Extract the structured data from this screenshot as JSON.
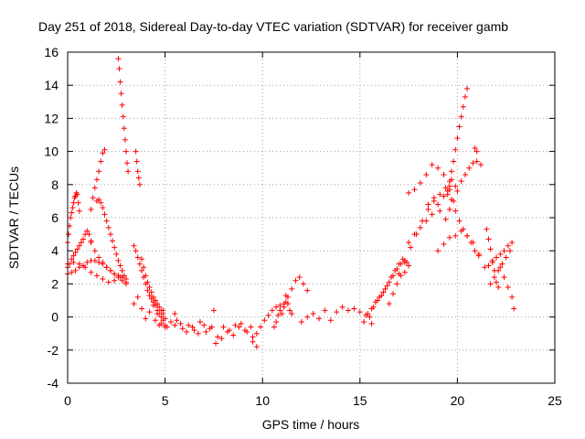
{
  "chart_data": {
    "type": "scatter",
    "title": "Day 251 of 2018, Sidereal Day-to-day VTEC variation (SDTVAR) for receiver gamb",
    "xlabel": "GPS time / hours",
    "ylabel": "SDTVAR / TECUs",
    "xlim": [
      0,
      25
    ],
    "ylim": [
      -4,
      16
    ],
    "xticks": [
      0,
      5,
      10,
      15,
      20,
      25
    ],
    "yticks": [
      -4,
      -2,
      0,
      2,
      4,
      6,
      8,
      10,
      12,
      14,
      16
    ],
    "grid": true,
    "marker": "+",
    "color": "#ff0000",
    "series": [
      {
        "name": "SDTVAR",
        "x": [
          0.0,
          0.05,
          0.1,
          0.15,
          0.2,
          0.25,
          0.3,
          0.35,
          0.4,
          0.45,
          0.5,
          0.55,
          0.6,
          0.0,
          0.1,
          0.2,
          0.3,
          0.4,
          0.5,
          0.6,
          0.7,
          0.8,
          0.9,
          1.0,
          1.1,
          1.2,
          0.0,
          0.2,
          0.4,
          0.6,
          0.8,
          1.0,
          1.2,
          1.4,
          1.6,
          1.8,
          2.0,
          2.2,
          2.4,
          2.6,
          2.8,
          3.0,
          0.0,
          0.3,
          0.6,
          0.9,
          1.2,
          1.5,
          1.8,
          2.1,
          2.4,
          2.7,
          3.0,
          1.2,
          1.3,
          1.4,
          1.5,
          1.6,
          1.7,
          1.8,
          1.9,
          1.5,
          1.6,
          1.7,
          1.8,
          1.9,
          2.0,
          2.1,
          2.2,
          2.3,
          2.4,
          2.5,
          2.6,
          2.7,
          2.8,
          2.9,
          3.0,
          1.2,
          1.4,
          1.6,
          1.8,
          2.0,
          2.2,
          2.4,
          2.6,
          2.8,
          3.0,
          2.6,
          2.65,
          2.7,
          2.75,
          2.8,
          2.85,
          2.9,
          2.95,
          3.0,
          3.05,
          3.1,
          3.5,
          3.55,
          3.6,
          3.65,
          3.7,
          3.4,
          3.5,
          3.6,
          3.7,
          3.8,
          3.9,
          4.0,
          4.1,
          4.2,
          4.3,
          4.4,
          4.5,
          4.6,
          4.7,
          4.8,
          4.9,
          5.0,
          3.8,
          3.9,
          4.0,
          4.1,
          4.2,
          4.3,
          4.4,
          4.5,
          4.6,
          4.7,
          4.8,
          4.9,
          5.0,
          3.4,
          3.6,
          3.8,
          4.0,
          4.2,
          4.4,
          4.6,
          4.8,
          5.0,
          4.5,
          4.7,
          4.9,
          5.1,
          5.3,
          5.5,
          5.5,
          5.8,
          6.1,
          6.4,
          6.7,
          7.0,
          7.3,
          7.6,
          7.9,
          8.2,
          8.5,
          8.8,
          9.1,
          9.4,
          9.7,
          5.6,
          5.9,
          6.2,
          6.5,
          6.8,
          7.1,
          7.4,
          7.7,
          8.0,
          8.3,
          8.6,
          8.9,
          9.2,
          9.5,
          7.5,
          9.5,
          9.7,
          9.9,
          10.1,
          10.3,
          10.5,
          10.7,
          10.9,
          11.1,
          11.3,
          11.5,
          11.7,
          11.9,
          12.1,
          12.3,
          10.6,
          10.7,
          10.8,
          10.9,
          11.0,
          11.1,
          11.2,
          11.2,
          11.3,
          11.4,
          11.5,
          12.0,
          12.3,
          12.6,
          12.9,
          13.2,
          13.5,
          13.8,
          14.1,
          14.4,
          14.7,
          15.0,
          15.3,
          15.6,
          15.2,
          15.4,
          15.6,
          15.8,
          16.0,
          16.2,
          16.4,
          16.6,
          16.8,
          17.0,
          17.2,
          17.4,
          15.5,
          15.7,
          15.9,
          16.1,
          16.3,
          16.5,
          16.7,
          16.9,
          17.1,
          17.3,
          16.5,
          16.7,
          16.9,
          17.1,
          17.3,
          17.5,
          17.0,
          17.3,
          17.6,
          17.9,
          18.2,
          18.5,
          18.8,
          19.1,
          19.4,
          19.7,
          17.5,
          17.8,
          18.1,
          18.4,
          18.7,
          19.0,
          19.3,
          19.6,
          19.9,
          17.5,
          17.8,
          18.1,
          18.4,
          18.7,
          19.0,
          19.3,
          19.6,
          18.5,
          18.8,
          19.1,
          19.4,
          19.5,
          19.6,
          19.7,
          19.8,
          19.9,
          20.0,
          20.1,
          20.2,
          20.3,
          20.4,
          20.5,
          19.5,
          19.7,
          19.9,
          20.1,
          20.3,
          20.5,
          20.7,
          20.9,
          21.1,
          19.0,
          19.3,
          19.6,
          19.9,
          20.2,
          20.5,
          20.8,
          21.1,
          21.4,
          19.6,
          19.8,
          20.0,
          20.2,
          20.4,
          20.6,
          20.8,
          21.0,
          21.2,
          20.9,
          21.0,
          21.5,
          21.6,
          21.7,
          21.8,
          21.9,
          22.0,
          22.1,
          21.6,
          21.8,
          22.0,
          22.2,
          22.4,
          22.6,
          22.8,
          22.0,
          22.2,
          22.4,
          22.6,
          22.8,
          22.9,
          21.7,
          21.9,
          22.1,
          22.3,
          22.5,
          22.7
        ]
      }
    ]
  }
}
